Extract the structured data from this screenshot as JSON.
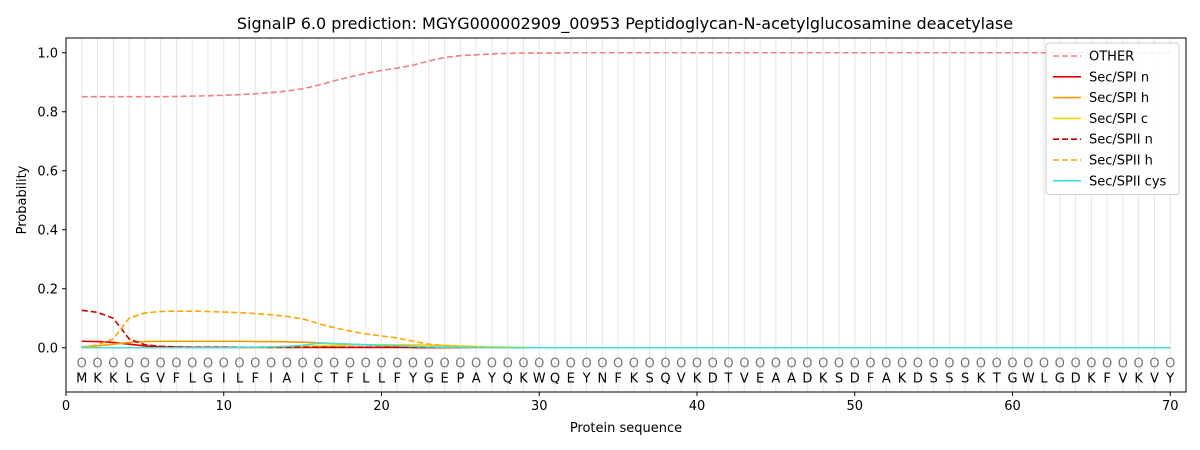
{
  "chart_data": {
    "type": "line",
    "title": "SignalP 6.0 prediction: MGYG000002909_00953 Peptidoglycan-N-acetylglucosamine deacetylase",
    "xlabel": "Protein sequence",
    "ylabel": "Probability",
    "xlim": [
      0,
      71
    ],
    "ylim": [
      -0.15,
      1.05
    ],
    "x_ticks": [
      0,
      10,
      20,
      30,
      40,
      50,
      60,
      70
    ],
    "y_ticks": [
      0.0,
      0.2,
      0.4,
      0.6,
      0.8,
      1.0
    ],
    "grid": "vertical lines at each residue",
    "legend_position": "top-right",
    "sequence": [
      "M",
      "K",
      "K",
      "L",
      "G",
      "V",
      "F",
      "L",
      "G",
      "I",
      "L",
      "F",
      "I",
      "A",
      "I",
      "C",
      "T",
      "F",
      "L",
      "L",
      "F",
      "Y",
      "G",
      "E",
      "P",
      "A",
      "Y",
      "Q",
      "K",
      "W",
      "Q",
      "E",
      "Y",
      "N",
      "F",
      "K",
      "S",
      "Q",
      "V",
      "K",
      "D",
      "T",
      "V",
      "E",
      "A",
      "A",
      "D",
      "K",
      "S",
      "D",
      "F",
      "A",
      "K",
      "D",
      "S",
      "S",
      "S",
      "K",
      "T",
      "G",
      "W",
      "L",
      "G",
      "D",
      "K",
      "F",
      "V",
      "K",
      "V",
      "Y"
    ],
    "residue_class_label": "O",
    "series": [
      {
        "name": "OTHER",
        "color": "#f08080",
        "dash": "dashed",
        "values": [
          0.851,
          0.851,
          0.851,
          0.851,
          0.851,
          0.851,
          0.852,
          0.853,
          0.854,
          0.856,
          0.858,
          0.861,
          0.865,
          0.87,
          0.878,
          0.89,
          0.905,
          0.918,
          0.93,
          0.94,
          0.948,
          0.958,
          0.972,
          0.984,
          0.99,
          0.993,
          0.996,
          0.998,
          0.999,
          0.999,
          0.999,
          1.0,
          1.0,
          1.0,
          1.0,
          1.0,
          1.0,
          1.0,
          1.0,
          1.0,
          1.0,
          1.0,
          1.0,
          1.0,
          1.0,
          1.0,
          1.0,
          1.0,
          1.0,
          1.0,
          1.0,
          1.0,
          1.0,
          1.0,
          1.0,
          1.0,
          1.0,
          1.0,
          1.0,
          1.0,
          1.0,
          1.0,
          1.0,
          1.0,
          1.0,
          1.0,
          1.0,
          1.0,
          1.0,
          1.0
        ]
      },
      {
        "name": "Sec/SPI n",
        "color": "#e00000",
        "dash": "solid",
        "values": [
          0.022,
          0.021,
          0.018,
          0.012,
          0.006,
          0.003,
          0.002,
          0.001,
          0.001,
          0.001,
          0.001,
          0.001,
          0.001,
          0.001,
          0.001,
          0.001,
          0.001,
          0.001,
          0.001,
          0.001,
          0.001,
          0.001,
          0.0,
          0.0,
          0.0,
          0.0,
          0.0,
          0.0,
          0.0,
          0.0,
          0.0,
          0.0,
          0.0,
          0.0,
          0.0,
          0.0,
          0.0,
          0.0,
          0.0,
          0.0,
          0.0,
          0.0,
          0.0,
          0.0,
          0.0,
          0.0,
          0.0,
          0.0,
          0.0,
          0.0,
          0.0,
          0.0,
          0.0,
          0.0,
          0.0,
          0.0,
          0.0,
          0.0,
          0.0,
          0.0,
          0.0,
          0.0,
          0.0,
          0.0,
          0.0,
          0.0,
          0.0,
          0.0,
          0.0,
          0.0
        ]
      },
      {
        "name": "Sec/SPI h",
        "color": "#f0a000",
        "dash": "solid",
        "values": [
          0.003,
          0.006,
          0.012,
          0.018,
          0.021,
          0.022,
          0.022,
          0.022,
          0.022,
          0.022,
          0.022,
          0.021,
          0.021,
          0.02,
          0.019,
          0.017,
          0.014,
          0.012,
          0.01,
          0.008,
          0.006,
          0.004,
          0.002,
          0.001,
          0.001,
          0.0,
          0.0,
          0.0,
          0.0,
          0.0,
          0.0,
          0.0,
          0.0,
          0.0,
          0.0,
          0.0,
          0.0,
          0.0,
          0.0,
          0.0,
          0.0,
          0.0,
          0.0,
          0.0,
          0.0,
          0.0,
          0.0,
          0.0,
          0.0,
          0.0,
          0.0,
          0.0,
          0.0,
          0.0,
          0.0,
          0.0,
          0.0,
          0.0,
          0.0,
          0.0,
          0.0,
          0.0,
          0.0,
          0.0,
          0.0,
          0.0,
          0.0,
          0.0,
          0.0,
          0.0
        ]
      },
      {
        "name": "Sec/SPI c",
        "color": "#f0d800",
        "dash": "solid",
        "values": [
          0.0,
          0.0,
          0.0,
          0.0,
          0.0,
          0.0,
          0.0,
          0.0,
          0.0,
          0.0,
          0.001,
          0.001,
          0.002,
          0.003,
          0.004,
          0.006,
          0.008,
          0.009,
          0.01,
          0.01,
          0.01,
          0.01,
          0.009,
          0.008,
          0.006,
          0.004,
          0.003,
          0.002,
          0.001,
          0.0,
          0.0,
          0.0,
          0.0,
          0.0,
          0.0,
          0.0,
          0.0,
          0.0,
          0.0,
          0.0,
          0.0,
          0.0,
          0.0,
          0.0,
          0.0,
          0.0,
          0.0,
          0.0,
          0.0,
          0.0,
          0.0,
          0.0,
          0.0,
          0.0,
          0.0,
          0.0,
          0.0,
          0.0,
          0.0,
          0.0,
          0.0,
          0.0,
          0.0,
          0.0,
          0.0,
          0.0,
          0.0,
          0.0,
          0.0,
          0.0
        ]
      },
      {
        "name": "Sec/SPII n",
        "color": "#cc0000",
        "dash": "dashed",
        "values": [
          0.127,
          0.12,
          0.1,
          0.03,
          0.01,
          0.005,
          0.003,
          0.002,
          0.002,
          0.002,
          0.002,
          0.002,
          0.002,
          0.002,
          0.002,
          0.002,
          0.002,
          0.002,
          0.002,
          0.002,
          0.002,
          0.001,
          0.001,
          0.001,
          0.0,
          0.0,
          0.0,
          0.0,
          0.0,
          0.0,
          0.0,
          0.0,
          0.0,
          0.0,
          0.0,
          0.0,
          0.0,
          0.0,
          0.0,
          0.0,
          0.0,
          0.0,
          0.0,
          0.0,
          0.0,
          0.0,
          0.0,
          0.0,
          0.0,
          0.0,
          0.0,
          0.0,
          0.0,
          0.0,
          0.0,
          0.0,
          0.0,
          0.0,
          0.0,
          0.0,
          0.0,
          0.0,
          0.0,
          0.0,
          0.0,
          0.0,
          0.0,
          0.0,
          0.0,
          0.0
        ]
      },
      {
        "name": "Sec/SPII h",
        "color": "#ffa500",
        "dash": "dashed",
        "values": [
          0.0,
          0.01,
          0.03,
          0.1,
          0.118,
          0.123,
          0.124,
          0.124,
          0.123,
          0.121,
          0.119,
          0.116,
          0.112,
          0.106,
          0.098,
          0.082,
          0.068,
          0.057,
          0.047,
          0.04,
          0.033,
          0.022,
          0.012,
          0.007,
          0.004,
          0.002,
          0.001,
          0.0,
          0.0,
          0.0,
          0.0,
          0.0,
          0.0,
          0.0,
          0.0,
          0.0,
          0.0,
          0.0,
          0.0,
          0.0,
          0.0,
          0.0,
          0.0,
          0.0,
          0.0,
          0.0,
          0.0,
          0.0,
          0.0,
          0.0,
          0.0,
          0.0,
          0.0,
          0.0,
          0.0,
          0.0,
          0.0,
          0.0,
          0.0,
          0.0,
          0.0,
          0.0,
          0.0,
          0.0,
          0.0,
          0.0,
          0.0,
          0.0,
          0.0,
          0.0
        ]
      },
      {
        "name": "Sec/SPII cys",
        "color": "#40e0e0",
        "dash": "solid",
        "values": [
          0.0,
          0.0,
          0.0,
          0.0,
          0.0,
          0.0,
          0.0,
          0.0,
          0.0,
          0.0,
          0.001,
          0.002,
          0.003,
          0.005,
          0.008,
          0.015,
          0.014,
          0.012,
          0.01,
          0.008,
          0.007,
          0.005,
          0.003,
          0.002,
          0.001,
          0.0,
          0.0,
          0.0,
          0.0,
          0.0,
          0.0,
          0.0,
          0.0,
          0.0,
          0.0,
          0.0,
          0.0,
          0.0,
          0.0,
          0.0,
          0.0,
          0.0,
          0.0,
          0.0,
          0.0,
          0.0,
          0.0,
          0.0,
          0.0,
          0.0,
          0.0,
          0.0,
          0.0,
          0.0,
          0.0,
          0.0,
          0.0,
          0.0,
          0.0,
          0.0,
          0.0,
          0.0,
          0.0,
          0.0,
          0.0,
          0.0,
          0.0,
          0.0,
          0.0,
          0.0
        ]
      }
    ]
  }
}
